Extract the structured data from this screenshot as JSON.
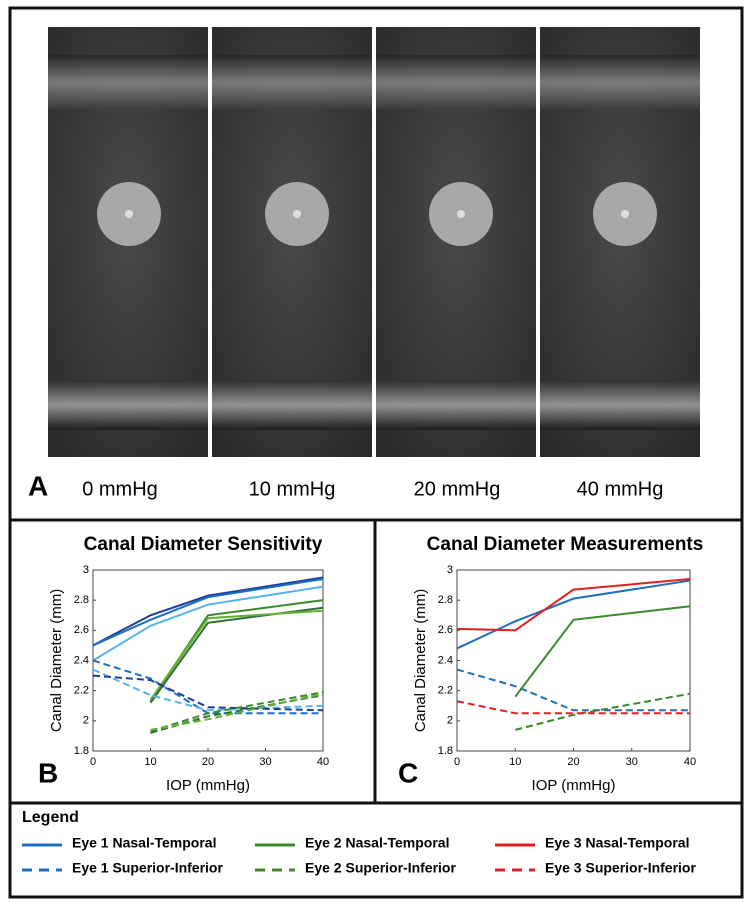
{
  "panel_a": {
    "label": "A",
    "captions": [
      "0 mmHg",
      "10 mmHg",
      "20 mmHg",
      "40 mmHg"
    ]
  },
  "chart_data": [
    {
      "type": "line",
      "panel": "B",
      "title": "Canal Diameter Sensitivity",
      "xlabel": "IOP (mmHg)",
      "ylabel": "Canal Diameter (mm)",
      "x": [
        0,
        10,
        20,
        40
      ],
      "xlim": [
        0,
        40
      ],
      "xticks": [
        0,
        10,
        20,
        30,
        40
      ],
      "ylim": [
        1.8,
        3
      ],
      "yticks": [
        1.8,
        2,
        2.2,
        2.4,
        2.6,
        2.8,
        3
      ],
      "series": [
        {
          "color": "#1f3f99",
          "dash": false,
          "values": [
            2.5,
            2.7,
            2.83,
            2.95
          ]
        },
        {
          "color": "#56b4e9",
          "dash": false,
          "values": [
            2.4,
            2.63,
            2.77,
            2.89
          ]
        },
        {
          "color": "#1f6fbf",
          "dash": false,
          "values": [
            2.5,
            2.67,
            2.82,
            2.94
          ]
        },
        {
          "color": "#3a8a2a",
          "dash": false,
          "values": [
            null,
            2.13,
            2.7,
            2.8
          ]
        },
        {
          "color": "#2e6e3a",
          "dash": false,
          "values": [
            null,
            2.12,
            2.65,
            2.75
          ]
        },
        {
          "color": "#66b032",
          "dash": false,
          "values": [
            null,
            2.14,
            2.68,
            2.73
          ]
        },
        {
          "color": "#1f6fbf",
          "dash": true,
          "values": [
            2.4,
            2.28,
            2.05,
            2.05
          ]
        },
        {
          "color": "#56b4e9",
          "dash": true,
          "values": [
            2.34,
            2.17,
            2.07,
            2.1
          ]
        },
        {
          "color": "#1f3f99",
          "dash": true,
          "values": [
            2.3,
            2.27,
            2.09,
            2.07
          ]
        },
        {
          "color": "#3a8a2a",
          "dash": true,
          "values": [
            null,
            1.93,
            2.05,
            2.19
          ]
        },
        {
          "color": "#2e6e3a",
          "dash": true,
          "values": [
            null,
            1.92,
            2.03,
            2.17
          ]
        },
        {
          "color": "#66b032",
          "dash": true,
          "values": [
            null,
            1.94,
            2.01,
            2.18
          ]
        }
      ]
    },
    {
      "type": "line",
      "panel": "C",
      "title": "Canal Diameter Measurements",
      "xlabel": "IOP (mmHg)",
      "ylabel": "Canal Diameter (mm)",
      "x": [
        0,
        10,
        20,
        40
      ],
      "xlim": [
        0,
        40
      ],
      "xticks": [
        0,
        10,
        20,
        30,
        40
      ],
      "ylim": [
        1.8,
        3
      ],
      "yticks": [
        1.8,
        2,
        2.2,
        2.4,
        2.6,
        2.8,
        3
      ],
      "series": [
        {
          "name": "Eye 1 Nasal-Temporal",
          "color": "#1f6fbf",
          "dash": false,
          "values": [
            2.48,
            2.66,
            2.81,
            2.93
          ]
        },
        {
          "name": "Eye 1 Superior-Inferior",
          "color": "#1f6fbf",
          "dash": true,
          "values": [
            2.34,
            2.23,
            2.07,
            2.07
          ]
        },
        {
          "name": "Eye 2 Nasal-Temporal",
          "color": "#3a8a2a",
          "dash": false,
          "values": [
            null,
            2.16,
            2.67,
            2.76
          ]
        },
        {
          "name": "Eye 2 Superior-Inferior",
          "color": "#3a8a2a",
          "dash": true,
          "values": [
            null,
            1.94,
            2.04,
            2.18
          ]
        },
        {
          "name": "Eye 3 Nasal-Temporal",
          "color": "#e02020",
          "dash": false,
          "values": [
            2.61,
            2.6,
            2.87,
            2.94
          ]
        },
        {
          "name": "Eye 3 Superior-Inferior",
          "color": "#e02020",
          "dash": true,
          "values": [
            2.13,
            2.05,
            2.05,
            2.05
          ]
        }
      ]
    }
  ],
  "legend": {
    "title": "Legend"
  }
}
